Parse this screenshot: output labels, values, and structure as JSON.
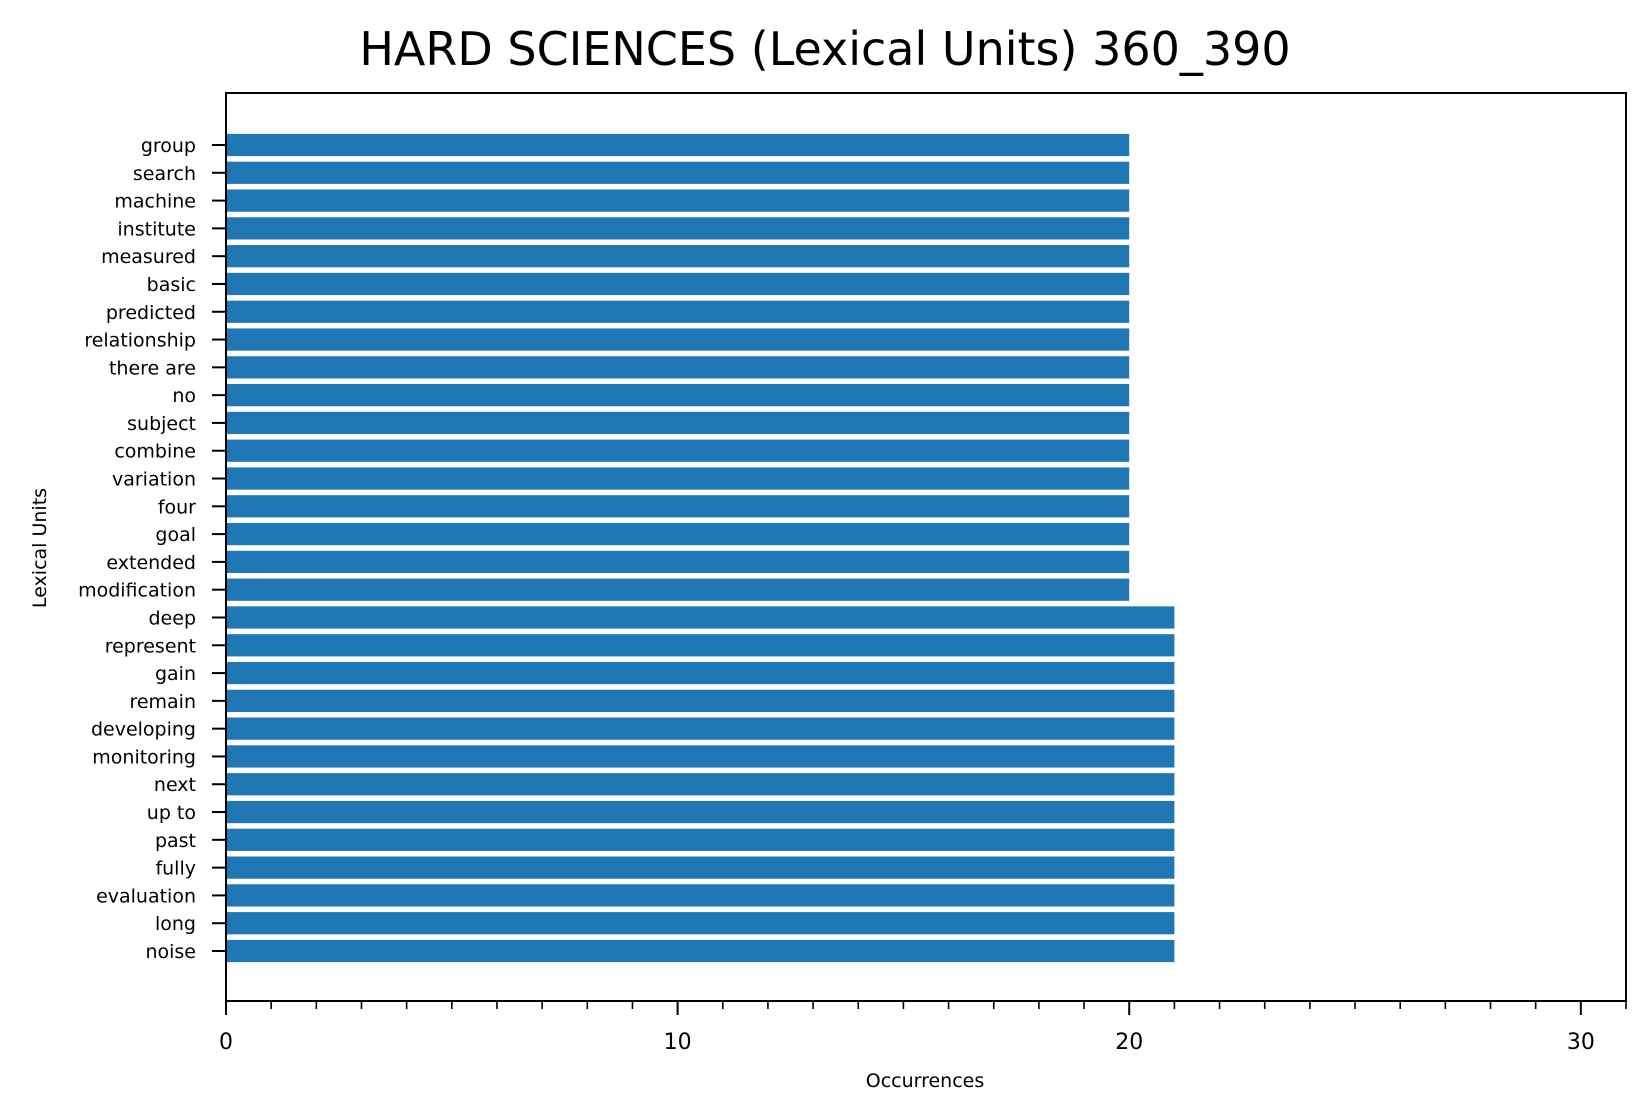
{
  "chart_data": {
    "type": "bar",
    "orientation": "horizontal",
    "title": "HARD SCIENCES (Lexical Units) 360_390",
    "xlabel": "Occurrences",
    "ylabel": "Lexical Units",
    "xlim": [
      0,
      31
    ],
    "xticks": [
      0,
      10,
      20,
      30
    ],
    "xtick_labels": [
      "0",
      "10",
      "20",
      "30"
    ],
    "minor_tick_step": 1,
    "grid": false,
    "bar_color": "#1f77b4",
    "categories": [
      "group",
      "search",
      "machine",
      "institute",
      "measured",
      "basic",
      "predicted",
      "relationship",
      "there are",
      "no",
      "subject",
      "combine",
      "variation",
      "four",
      "goal",
      "extended",
      "modification",
      "deep",
      "represent",
      "gain",
      "remain",
      "developing",
      "monitoring",
      "next",
      "up to",
      "past",
      "fully",
      "evaluation",
      "long",
      "noise"
    ],
    "values": [
      20,
      20,
      20,
      20,
      20,
      20,
      20,
      20,
      20,
      20,
      20,
      20,
      20,
      20,
      20,
      20,
      20,
      21,
      21,
      21,
      21,
      21,
      21,
      21,
      21,
      21,
      21,
      21,
      21,
      21
    ]
  }
}
